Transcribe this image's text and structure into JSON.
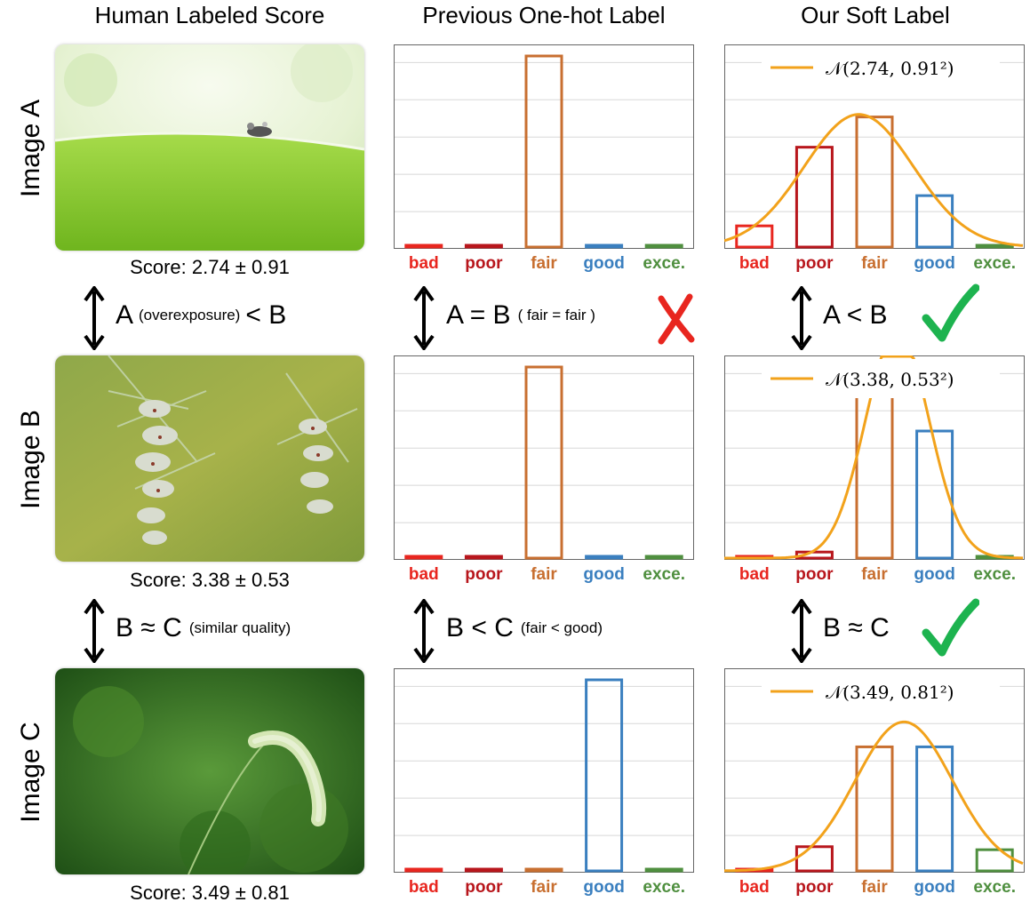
{
  "headers": {
    "col1": "Human Labeled Score",
    "col2": "Previous One-hot Label",
    "col3": "Our Soft Label"
  },
  "rows": [
    {
      "label": "Image A",
      "score": "Score: 2.74 ± 0.91"
    },
    {
      "label": "Image B",
      "score": "Score: 3.38 ± 0.53"
    },
    {
      "label": "Image C",
      "score": "Score: 3.49 ± 0.81"
    }
  ],
  "categories": [
    "bad",
    "poor",
    "fair",
    "good",
    "exce."
  ],
  "category_colors": [
    "#e8261f",
    "#b8161c",
    "#c86f30",
    "#3a7fbf",
    "#4f8f3f"
  ],
  "curve_color": "#f2a21b",
  "comparisons": {
    "ab_human": {
      "lhs": "A",
      "note": "(overexposure)",
      "op": "< B"
    },
    "ab_onehot": {
      "text": "A = B",
      "note": "( fair = fair )",
      "mark": "wrong"
    },
    "ab_soft": {
      "text": "A < B",
      "mark": "right"
    },
    "bc_human": {
      "text": "B ≈ C",
      "note": "(similar quality)"
    },
    "bc_onehot": {
      "text": "B < C",
      "note": "(fair < good)"
    },
    "bc_soft": {
      "text": "B ≈ C",
      "mark": "right"
    }
  },
  "chart_data": [
    {
      "type": "bar",
      "name": "onehot-A",
      "categories": [
        "bad",
        "poor",
        "fair",
        "good",
        "exce."
      ],
      "values": [
        0,
        0,
        1,
        0,
        0
      ]
    },
    {
      "type": "bar",
      "name": "onehot-B",
      "categories": [
        "bad",
        "poor",
        "fair",
        "good",
        "exce."
      ],
      "values": [
        0,
        0,
        1,
        0,
        0
      ]
    },
    {
      "type": "bar",
      "name": "onehot-C",
      "categories": [
        "bad",
        "poor",
        "fair",
        "good",
        "exce."
      ],
      "values": [
        0,
        0,
        0,
        1,
        0
      ]
    },
    {
      "type": "bar",
      "name": "soft-A",
      "legend": "𝒩(2.74, 0.91²)",
      "mean": 2.74,
      "std": 0.91,
      "categories": [
        "bad",
        "poor",
        "fair",
        "good",
        "exce."
      ],
      "values": [
        0.07,
        0.33,
        0.43,
        0.17,
        0.0
      ]
    },
    {
      "type": "bar",
      "name": "soft-B",
      "legend": "𝒩(3.38, 0.53²)",
      "mean": 3.38,
      "std": 0.53,
      "categories": [
        "bad",
        "poor",
        "fair",
        "good",
        "exce."
      ],
      "values": [
        0.0,
        0.02,
        0.55,
        0.42,
        0.0
      ]
    },
    {
      "type": "bar",
      "name": "soft-C",
      "legend": "𝒩(3.49, 0.81²)",
      "mean": 3.49,
      "std": 0.81,
      "categories": [
        "bad",
        "poor",
        "fair",
        "good",
        "exce."
      ],
      "values": [
        0.0,
        0.08,
        0.41,
        0.41,
        0.07
      ]
    }
  ]
}
